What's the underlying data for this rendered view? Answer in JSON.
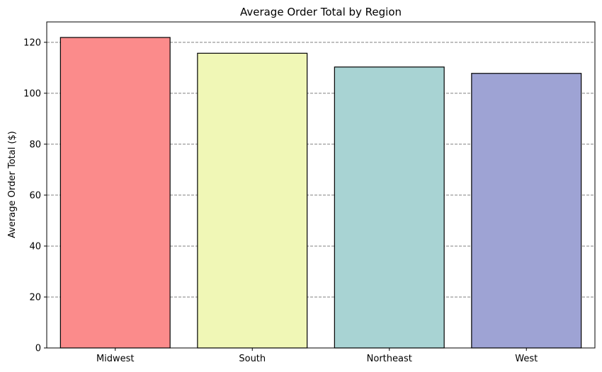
{
  "chart_data": {
    "type": "bar",
    "title": "Average Order Total by Region",
    "xlabel": "",
    "ylabel": "Average Order Total ($)",
    "categories": [
      "Midwest",
      "South",
      "Northeast",
      "West"
    ],
    "values": [
      121.9,
      115.7,
      110.3,
      107.8
    ],
    "colors": [
      "#fb8b8b",
      "#f0f7b6",
      "#a8d3d3",
      "#9ea3d4"
    ],
    "edge_color": "#000000",
    "ylim": [
      0,
      128
    ],
    "yticks": [
      0,
      20,
      40,
      60,
      80,
      100,
      120
    ],
    "ytick_labels": [
      "0",
      "20",
      "40",
      "60",
      "80",
      "100",
      "120"
    ],
    "grid": {
      "axis": "y",
      "style": "dashed",
      "color": "#808080"
    },
    "legend": "none"
  }
}
